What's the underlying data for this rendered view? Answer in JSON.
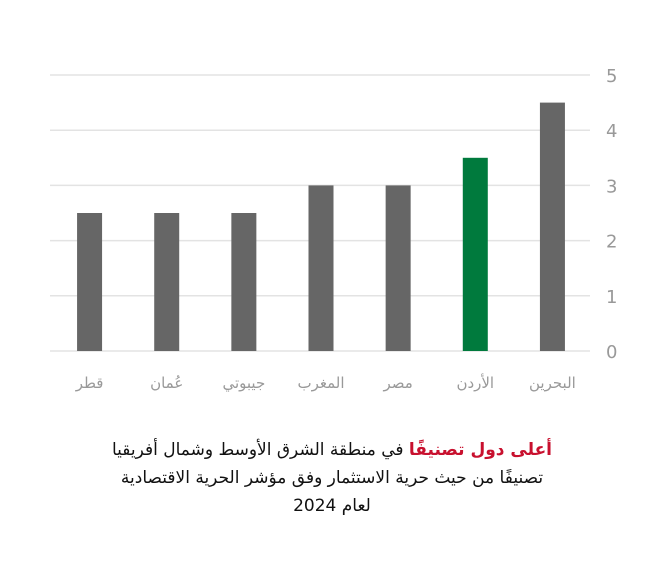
{
  "chart_data": {
    "type": "bar",
    "categories": [
      "قطر",
      "عُمان",
      "جيبوتي",
      "المغرب",
      "مصر",
      "الأردن",
      "البحرين"
    ],
    "values": [
      2.5,
      2.5,
      2.5,
      3.0,
      3.0,
      3.5,
      4.5
    ],
    "highlight_category": "الأردن",
    "ylim": [
      0,
      5
    ],
    "yticks": [
      "0",
      "1",
      "2",
      "3",
      "4",
      "5"
    ],
    "y_axis_position": "right",
    "grid": true,
    "colors": {
      "bar": "#666666",
      "highlight": "#007a3d",
      "grid": "#e3e3e3",
      "tick_label": "#999999"
    }
  },
  "caption": {
    "highlight": "أعلى دول تصنيفًا",
    "line1_rest": " في منطقة الشرق الأوسط وشمال أفريقيا",
    "line2": "تصنيفًا من حيث حرية الاستثمار وفق مؤشر الحرية الاقتصادية",
    "line3": "لعام 2024",
    "highlight_color": "#c8102e"
  }
}
